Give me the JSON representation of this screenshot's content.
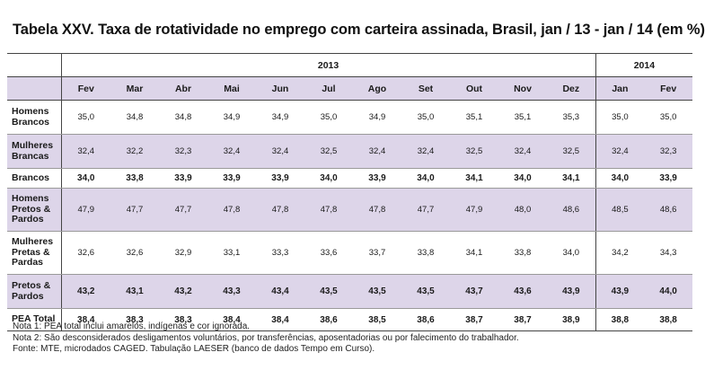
{
  "title": "Tabela XXV. Taxa de rotatividade no emprego com carteira assinada, Brasil, jan / 13 - jan / 14 (em %)",
  "years": [
    {
      "label": "2013"
    },
    {
      "label": "2014"
    }
  ],
  "months": [
    "Fev",
    "Mar",
    "Abr",
    "Mai",
    "Jun",
    "Jul",
    "Ago",
    "Set",
    "Out",
    "Nov",
    "Dez",
    "Jan",
    "Fev"
  ],
  "rows": [
    {
      "label_lines": [
        "Homens",
        "Brancos"
      ],
      "values": [
        "35,0",
        "34,8",
        "34,8",
        "34,9",
        "34,9",
        "35,0",
        "34,9",
        "35,0",
        "35,1",
        "35,1",
        "35,3",
        "35,0",
        "35,0"
      ]
    },
    {
      "label_lines": [
        "Mulheres",
        "Brancas"
      ],
      "values": [
        "32,4",
        "32,2",
        "32,3",
        "32,4",
        "32,4",
        "32,5",
        "32,4",
        "32,4",
        "32,5",
        "32,4",
        "32,5",
        "32,4",
        "32,3"
      ]
    },
    {
      "label_lines": [
        "Brancos"
      ],
      "values": [
        "34,0",
        "33,8",
        "33,9",
        "33,9",
        "33,9",
        "34,0",
        "33,9",
        "34,0",
        "34,1",
        "34,0",
        "34,1",
        "34,0",
        "33,9"
      ]
    },
    {
      "label_lines": [
        "Homens",
        "Pretos &",
        "Pardos"
      ],
      "values": [
        "47,9",
        "47,7",
        "47,7",
        "47,8",
        "47,8",
        "47,8",
        "47,8",
        "47,7",
        "47,9",
        "48,0",
        "48,6",
        "48,5",
        "48,6"
      ]
    },
    {
      "label_lines": [
        "Mulheres",
        "Pretas &",
        "Pardas"
      ],
      "values": [
        "32,6",
        "32,6",
        "32,9",
        "33,1",
        "33,3",
        "33,6",
        "33,7",
        "33,8",
        "34,1",
        "33,8",
        "34,0",
        "34,2",
        "34,3"
      ]
    },
    {
      "label_lines": [
        "Pretos &",
        "Pardos"
      ],
      "values": [
        "43,2",
        "43,1",
        "43,2",
        "43,3",
        "43,4",
        "43,5",
        "43,5",
        "43,5",
        "43,7",
        "43,6",
        "43,9",
        "43,9",
        "44,0"
      ]
    },
    {
      "label_lines": [
        "PEA Total"
      ],
      "values": [
        "38,4",
        "38,3",
        "38,3",
        "38,4",
        "38,4",
        "38,6",
        "38,5",
        "38,6",
        "38,7",
        "38,7",
        "38,9",
        "38,8",
        "38,8"
      ]
    }
  ],
  "notes": [
    "Nota 1: PEA total inclui amarelos, indígenas e cor ignorada.",
    "Nota 2: São desconsiderados desligamentos voluntários, por transferências, aposentadorias ou por falecimento do trabalhador.",
    "Fonte: MTE, microdados CAGED. Tabulação LAESER (banco de dados Tempo em Curso)."
  ]
}
